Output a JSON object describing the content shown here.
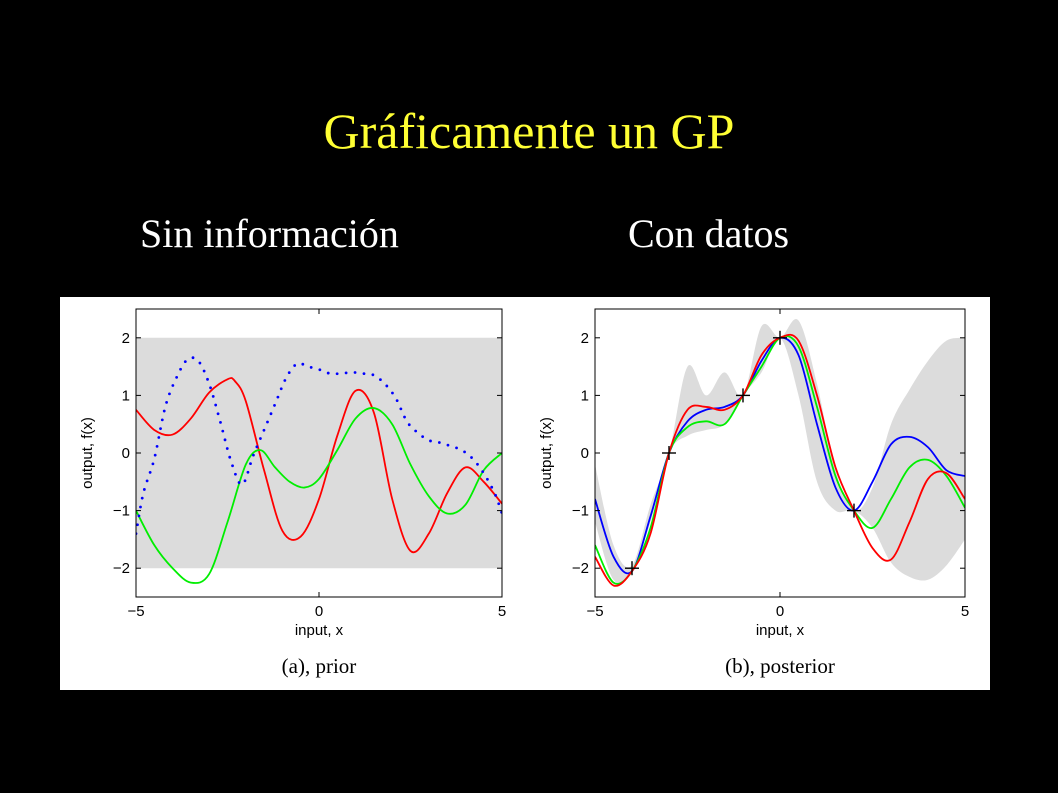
{
  "slide": {
    "title": "Gráficamente un GP",
    "left_heading": "Sin información",
    "right_heading": "Con datos"
  },
  "colors": {
    "title": "#ffff33",
    "background": "#000000",
    "band": "#dcdcdc",
    "red": "#ff0000",
    "green": "#00ee00",
    "blue": "#0000ff"
  },
  "chart_data": [
    {
      "type": "line",
      "caption": "(a), prior",
      "xlabel": "input, x",
      "ylabel": "output, f(x)",
      "xlim": [
        -5,
        5
      ],
      "ylim": [
        -2.5,
        2.5
      ],
      "xticks": [
        "−5",
        "0",
        "5"
      ],
      "yticks": [
        "−2",
        "−1",
        "0",
        "1",
        "2"
      ],
      "band": {
        "x": [
          -5,
          5
        ],
        "lower": [
          -2,
          -2
        ],
        "upper": [
          2,
          2
        ]
      },
      "series": [
        {
          "color": "red",
          "style": "solid",
          "x": [
            -5,
            -4.5,
            -4,
            -3.5,
            -3,
            -2.5,
            -2.3,
            -2,
            -1.5,
            -1,
            -0.5,
            0,
            0.5,
            1,
            1.5,
            2,
            2.5,
            3,
            3.5,
            4,
            4.5,
            5
          ],
          "y": [
            0.75,
            0.4,
            0.32,
            0.6,
            1.05,
            1.28,
            1.25,
            0.9,
            -0.3,
            -1.35,
            -1.45,
            -0.8,
            0.3,
            1.08,
            0.7,
            -0.8,
            -1.7,
            -1.4,
            -0.7,
            -0.25,
            -0.5,
            -0.88
          ]
        },
        {
          "color": "green",
          "style": "solid",
          "x": [
            -5,
            -4.5,
            -4,
            -3.5,
            -3,
            -2.5,
            -2,
            -1.6,
            -1.2,
            -0.8,
            -0.4,
            0,
            0.5,
            1,
            1.5,
            2,
            2.5,
            3,
            3.5,
            4,
            4.5,
            5
          ],
          "y": [
            -1.0,
            -1.6,
            -2.0,
            -2.25,
            -2.1,
            -1.2,
            -0.2,
            0.05,
            -0.25,
            -0.5,
            -0.6,
            -0.45,
            0.05,
            0.6,
            0.78,
            0.5,
            -0.2,
            -0.75,
            -1.05,
            -0.9,
            -0.3,
            0.0
          ]
        },
        {
          "color": "blue",
          "style": "dotted",
          "x": [
            -5,
            -4.8,
            -4.5,
            -4.2,
            -3.9,
            -3.6,
            -3.3,
            -3,
            -2.7,
            -2.4,
            -2.1,
            -1.8,
            -1.5,
            -1.2,
            -0.9,
            -0.6,
            -0.3,
            0,
            0.3,
            0.6,
            0.9,
            1.2,
            1.5,
            1.8,
            2.1,
            2.4,
            2.7,
            3,
            3.3,
            3.6,
            3.9,
            4.2,
            4.5,
            4.8,
            5
          ],
          "y": [
            -1.4,
            -0.7,
            -0.1,
            0.8,
            1.3,
            1.62,
            1.6,
            1.2,
            0.55,
            -0.15,
            -0.55,
            -0.05,
            0.4,
            0.85,
            1.3,
            1.55,
            1.5,
            1.45,
            1.38,
            1.38,
            1.4,
            1.38,
            1.35,
            1.2,
            0.95,
            0.55,
            0.35,
            0.22,
            0.18,
            0.12,
            0.05,
            -0.1,
            -0.35,
            -0.7,
            -1.05
          ]
        }
      ]
    },
    {
      "type": "line",
      "caption": "(b), posterior",
      "xlabel": "input, x",
      "ylabel": "output, f(x)",
      "xlim": [
        -5,
        5
      ],
      "ylim": [
        -2.5,
        2.5
      ],
      "xticks": [
        "−5",
        "0",
        "5"
      ],
      "yticks": [
        "−2",
        "−1",
        "0",
        "1",
        "2"
      ],
      "observations": {
        "x": [
          -4,
          -3,
          -1,
          0,
          2
        ],
        "y": [
          -2,
          0,
          1,
          2,
          -1
        ]
      },
      "band": {
        "x": [
          -5,
          -4.5,
          -4,
          -3.5,
          -3,
          -2.5,
          -2,
          -1.5,
          -1,
          -0.5,
          0,
          0.5,
          1,
          1.5,
          2,
          2.5,
          3,
          3.5,
          4,
          4.5,
          5
        ],
        "lower": [
          -1.2,
          -2.2,
          -2.05,
          -1.2,
          0.0,
          0.3,
          0.4,
          0.5,
          1.0,
          1.4,
          2.0,
          1.0,
          -0.5,
          -1.0,
          -1.0,
          -1.3,
          -1.9,
          -2.15,
          -2.2,
          -1.95,
          -1.5
        ],
        "upper": [
          -0.2,
          -1.6,
          -1.95,
          -0.9,
          0.0,
          1.5,
          1.0,
          1.4,
          1.0,
          2.2,
          2.0,
          2.3,
          1.2,
          -0.3,
          -1.0,
          -0.6,
          0.5,
          1.1,
          1.6,
          1.95,
          2.0
        ]
      },
      "series": [
        {
          "color": "blue",
          "style": "solid",
          "x": [
            -5,
            -4.5,
            -4,
            -3.5,
            -3,
            -2.5,
            -2,
            -1.5,
            -1,
            -0.5,
            0,
            0.5,
            1,
            1.5,
            2,
            2.5,
            3,
            3.5,
            4,
            4.5,
            5
          ],
          "y": [
            -0.8,
            -1.8,
            -2.05,
            -1.1,
            0.0,
            0.55,
            0.75,
            0.8,
            1.0,
            1.6,
            2.0,
            1.7,
            0.5,
            -0.6,
            -1.0,
            -0.5,
            0.15,
            0.28,
            0.1,
            -0.3,
            -0.4
          ]
        },
        {
          "color": "green",
          "style": "solid",
          "x": [
            -5,
            -4.5,
            -4,
            -3.5,
            -3,
            -2.5,
            -2,
            -1.5,
            -1,
            -0.5,
            0,
            0.5,
            1,
            1.5,
            2,
            2.5,
            3,
            3.5,
            4,
            4.5,
            5
          ],
          "y": [
            -1.6,
            -2.25,
            -2.05,
            -1.3,
            0.0,
            0.45,
            0.55,
            0.5,
            1.0,
            1.5,
            2.0,
            1.85,
            0.8,
            -0.4,
            -1.0,
            -1.3,
            -0.8,
            -0.25,
            -0.12,
            -0.4,
            -0.95
          ]
        },
        {
          "color": "red",
          "style": "solid",
          "x": [
            -5,
            -4.5,
            -4,
            -3.5,
            -3,
            -2.5,
            -2,
            -1.5,
            -1,
            -0.5,
            0,
            0.5,
            1,
            1.5,
            2,
            2.5,
            3,
            3.5,
            4,
            4.5,
            5
          ],
          "y": [
            -1.8,
            -2.3,
            -2.05,
            -1.4,
            0.0,
            0.75,
            0.8,
            0.75,
            1.0,
            1.7,
            2.0,
            1.95,
            1.0,
            -0.25,
            -1.0,
            -1.65,
            -1.85,
            -1.2,
            -0.45,
            -0.35,
            -0.8
          ]
        }
      ]
    }
  ]
}
